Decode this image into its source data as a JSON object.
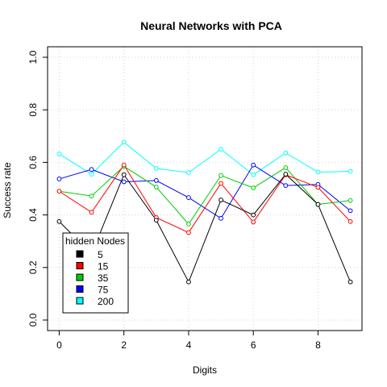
{
  "chart_data": {
    "type": "line",
    "title": "Neural Networks with PCA",
    "xlabel": "Digits",
    "ylabel": "Success rate",
    "x": [
      0,
      1,
      2,
      3,
      4,
      5,
      6,
      7,
      8,
      9
    ],
    "xlim": [
      -0.36,
      9.36
    ],
    "ylim": [
      -0.04,
      1.04
    ],
    "xticks": [
      0,
      2,
      4,
      6,
      8
    ],
    "yticks": [
      0.0,
      0.2,
      0.4,
      0.6,
      0.8,
      1.0
    ],
    "grid": true,
    "legend": {
      "title": "hidden Nodes",
      "position": "bottom-left"
    },
    "series": [
      {
        "name": "5",
        "color": "#000000",
        "values": [
          0.375,
          0.252,
          0.553,
          0.38,
          0.145,
          0.457,
          0.4,
          0.555,
          0.44,
          0.145
        ]
      },
      {
        "name": "15",
        "color": "#ff0000",
        "values": [
          0.49,
          0.41,
          0.59,
          0.39,
          0.333,
          0.52,
          0.373,
          0.553,
          0.505,
          0.375
        ]
      },
      {
        "name": "35",
        "color": "#00cd00",
        "values": [
          0.49,
          0.472,
          0.585,
          0.506,
          0.365,
          0.55,
          0.503,
          0.58,
          0.44,
          0.455
        ]
      },
      {
        "name": "75",
        "color": "#0000ff",
        "values": [
          0.537,
          0.573,
          0.526,
          0.531,
          0.466,
          0.387,
          0.59,
          0.512,
          0.516,
          0.416
        ]
      },
      {
        "name": "200",
        "color": "#00ffff",
        "values": [
          0.632,
          0.555,
          0.677,
          0.577,
          0.561,
          0.65,
          0.553,
          0.636,
          0.563,
          0.566
        ]
      }
    ]
  }
}
